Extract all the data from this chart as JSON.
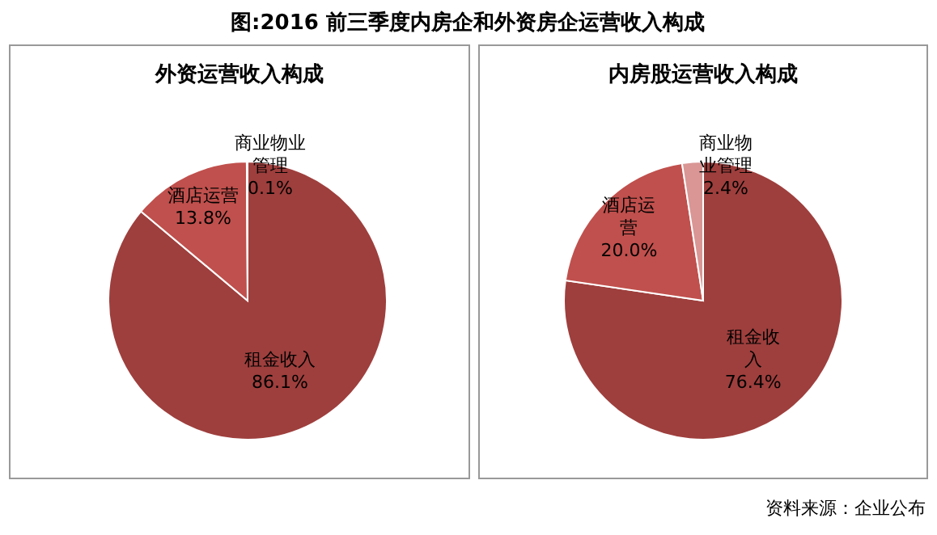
{
  "chart_data": [
    {
      "type": "pie",
      "title": "外资运营收入构成",
      "categories": [
        "租金收入",
        "酒店运营",
        "商业物业管理"
      ],
      "values": [
        86.1,
        13.8,
        0.1
      ],
      "value_labels": [
        "86.1%",
        "13.8%",
        "0.1%"
      ],
      "colors": [
        "#9e3f3d",
        "#c0504d",
        "#d99694"
      ],
      "data_labels": true,
      "annotations": [
        "图:2016 前三季度内房企和外资房企运营收入构成"
      ]
    },
    {
      "type": "pie",
      "title": "内房股运营收入构成",
      "categories": [
        "租金收入",
        "酒店运营",
        "商业物业管理"
      ],
      "values": [
        76.4,
        20.0,
        2.4
      ],
      "value_labels": [
        "76.4%",
        "20.0%",
        "2.4%"
      ],
      "colors": [
        "#9e3f3d",
        "#c0504d",
        "#d99694"
      ],
      "data_labels": true,
      "annotations": [
        "资料来源：企业公布"
      ]
    }
  ]
}
